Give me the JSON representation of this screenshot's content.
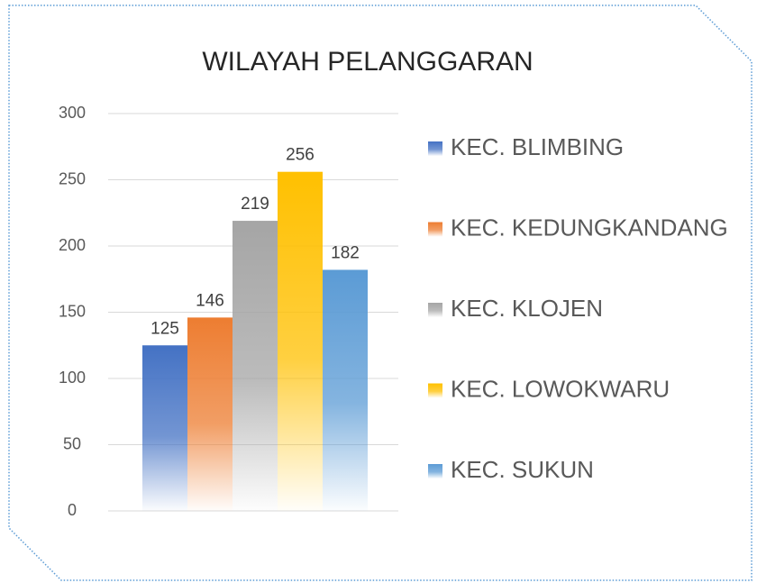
{
  "chart_data": {
    "type": "bar",
    "title": "WILAYAH PELANGGARAN",
    "categories": [
      null
    ],
    "series": [
      {
        "name": "KEC. BLIMBING",
        "color": "#4472c4",
        "values": [
          125
        ]
      },
      {
        "name": "KEC. KEDUNGKANDANG",
        "color": "#ed7d31",
        "values": [
          146
        ]
      },
      {
        "name": "KEC. KLOJEN",
        "color": "#a5a5a5",
        "values": [
          219
        ]
      },
      {
        "name": "KEC. LOWOKWARU",
        "color": "#ffc000",
        "values": [
          256
        ]
      },
      {
        "name": "KEC. SUKUN",
        "color": "#5b9bd5",
        "values": [
          182
        ]
      }
    ],
    "ylim": [
      0,
      300
    ],
    "yticks": [
      0,
      50,
      100,
      150,
      200,
      250,
      300
    ],
    "grid": true,
    "legend": "right"
  }
}
